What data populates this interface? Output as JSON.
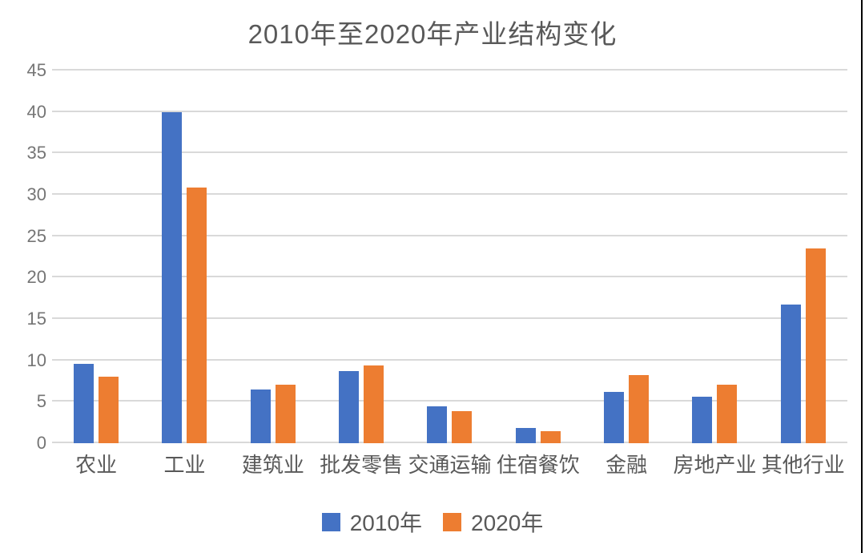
{
  "chart_data": {
    "type": "bar",
    "title": "2010年至2020年产业结构变化",
    "categories": [
      "农业",
      "工业",
      "建筑业",
      "批发零售",
      "交通运输",
      "住宿餐饮",
      "金融",
      "房地产业",
      "其他行业"
    ],
    "series": [
      {
        "name": "2010年",
        "color": "#4472c4",
        "values": [
          9.6,
          40.0,
          6.5,
          8.7,
          4.5,
          1.8,
          6.2,
          5.6,
          16.7
        ]
      },
      {
        "name": "2020年",
        "color": "#ed7d31",
        "values": [
          8.0,
          30.9,
          7.1,
          9.4,
          3.9,
          1.5,
          8.2,
          7.1,
          23.5
        ]
      }
    ],
    "xlabel": "",
    "ylabel": "",
    "ylim": [
      0,
      45
    ],
    "yticks": [
      0,
      5,
      10,
      15,
      20,
      25,
      30,
      35,
      40,
      45
    ],
    "grid": "horizontal",
    "gridline_color": "#d9d9d9",
    "legend_position": "bottom",
    "title_color": "#595959",
    "tick_color": "#757575"
  }
}
